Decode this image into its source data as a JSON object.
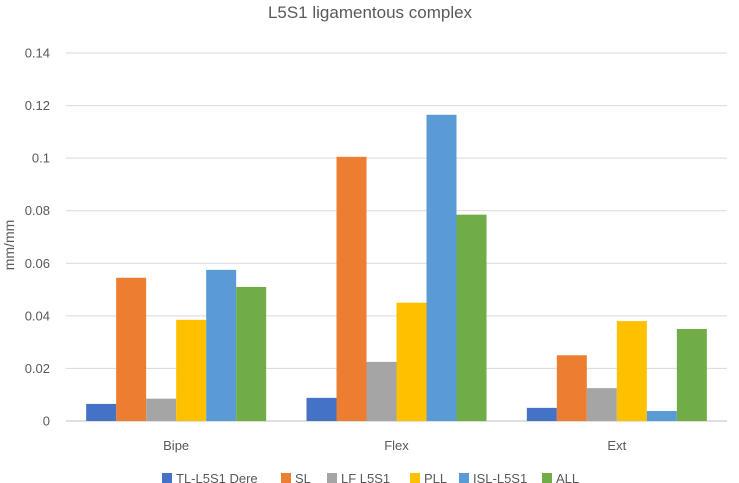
{
  "chart_data": {
    "type": "bar",
    "title": "L5S1 ligamentous complex",
    "xlabel": "",
    "ylabel": "mm/mm",
    "ylim": [
      0,
      0.14
    ],
    "yticks": [
      "0",
      "0.02",
      "0.04",
      "0.06",
      "0.08",
      "0.1",
      "0.12",
      "0.14"
    ],
    "categories": [
      "Bipe",
      "Flex",
      "Ext"
    ],
    "series": [
      {
        "name": "TL-L5S1 Dere",
        "color": "#4472C4",
        "values": [
          0.0065,
          0.0088,
          0.005
        ]
      },
      {
        "name": "SL",
        "color": "#ED7D31",
        "values": [
          0.0545,
          0.1005,
          0.025
        ]
      },
      {
        "name": "LF L5S1",
        "color": "#A5A5A5",
        "values": [
          0.0085,
          0.0225,
          0.0125
        ]
      },
      {
        "name": "PLL",
        "color": "#FFC000",
        "values": [
          0.0385,
          0.045,
          0.038
        ]
      },
      {
        "name": "ISL-L5S1",
        "color": "#5B9BD5",
        "values": [
          0.0575,
          0.1165,
          0.0038
        ]
      },
      {
        "name": "ALL",
        "color": "#70AD47",
        "values": [
          0.051,
          0.0785,
          0.035
        ]
      }
    ],
    "grid": true,
    "legend_position": "bottom"
  }
}
